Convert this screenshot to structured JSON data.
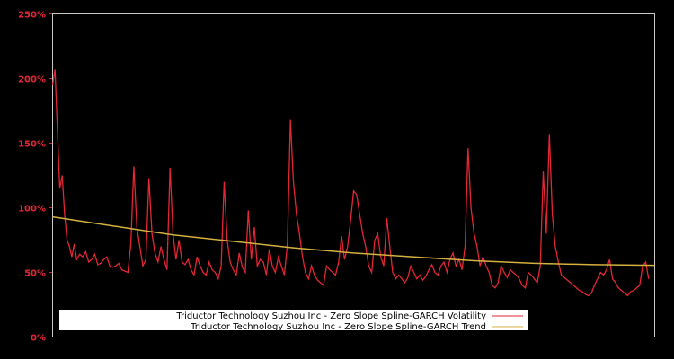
{
  "chart_data": {
    "type": "line",
    "title": "",
    "xlabel": "",
    "ylabel": "",
    "ylim": [
      0,
      250
    ],
    "y_ticks": [
      "0%",
      "50%",
      "100%",
      "150%",
      "200%",
      "250%"
    ],
    "grid": false,
    "legend_position": "bottom-left inside plot",
    "series": [
      {
        "name": "Triductor Technology Suzhou Inc - Zero Slope Spline-GARCH Volatility",
        "color": "#e32636",
        "x_frac": [
          0.0,
          0.004,
          0.008,
          0.012,
          0.016,
          0.02,
          0.024,
          0.028,
          0.032,
          0.036,
          0.04,
          0.045,
          0.05,
          0.055,
          0.06,
          0.065,
          0.07,
          0.075,
          0.08,
          0.085,
          0.09,
          0.095,
          0.1,
          0.105,
          0.11,
          0.115,
          0.12,
          0.125,
          0.13,
          0.135,
          0.14,
          0.145,
          0.15,
          0.155,
          0.16,
          0.165,
          0.17,
          0.175,
          0.18,
          0.185,
          0.19,
          0.195,
          0.2,
          0.205,
          0.21,
          0.215,
          0.22,
          0.225,
          0.23,
          0.235,
          0.24,
          0.245,
          0.25,
          0.255,
          0.26,
          0.265,
          0.27,
          0.275,
          0.28,
          0.285,
          0.29,
          0.295,
          0.3,
          0.305,
          0.31,
          0.315,
          0.32,
          0.325,
          0.33,
          0.335,
          0.34,
          0.345,
          0.35,
          0.355,
          0.36,
          0.365,
          0.37,
          0.375,
          0.38,
          0.385,
          0.39,
          0.395,
          0.4,
          0.405,
          0.41,
          0.415,
          0.42,
          0.425,
          0.43,
          0.435,
          0.44,
          0.445,
          0.45,
          0.455,
          0.46,
          0.465,
          0.47,
          0.475,
          0.48,
          0.485,
          0.49,
          0.495,
          0.5,
          0.505,
          0.51,
          0.515,
          0.52,
          0.525,
          0.53,
          0.535,
          0.54,
          0.545,
          0.55,
          0.555,
          0.56,
          0.565,
          0.57,
          0.575,
          0.58,
          0.585,
          0.59,
          0.595,
          0.6,
          0.605,
          0.61,
          0.615,
          0.62,
          0.625,
          0.63,
          0.635,
          0.64,
          0.645,
          0.65,
          0.655,
          0.66,
          0.665,
          0.67,
          0.675,
          0.68,
          0.685,
          0.69,
          0.695,
          0.7,
          0.705,
          0.71,
          0.715,
          0.72,
          0.725,
          0.73,
          0.735,
          0.74,
          0.745,
          0.75,
          0.755,
          0.76,
          0.765,
          0.77,
          0.775,
          0.78,
          0.785,
          0.79,
          0.795,
          0.8,
          0.805,
          0.81,
          0.815,
          0.82,
          0.825,
          0.83,
          0.835,
          0.84,
          0.845,
          0.85,
          0.855,
          0.86,
          0.865,
          0.87,
          0.875,
          0.88,
          0.885,
          0.89,
          0.895,
          0.9,
          0.905,
          0.91,
          0.915,
          0.92,
          0.925,
          0.93,
          0.935,
          0.94,
          0.945,
          0.95,
          0.955,
          0.96,
          0.965,
          0.97,
          0.975,
          0.98,
          0.985,
          0.99,
          0.995,
          1.0
        ],
        "values": [
          195,
          207,
          160,
          115,
          125,
          95,
          75,
          70,
          62,
          72,
          60,
          64,
          62,
          66,
          58,
          60,
          64,
          56,
          57,
          60,
          62,
          55,
          54,
          55,
          57,
          52,
          51,
          50,
          72,
          132,
          85,
          70,
          55,
          60,
          123,
          80,
          65,
          58,
          70,
          60,
          52,
          131,
          80,
          60,
          75,
          58,
          56,
          60,
          52,
          48,
          62,
          55,
          50,
          48,
          58,
          52,
          50,
          45,
          55,
          120,
          75,
          58,
          52,
          48,
          65,
          54,
          50,
          98,
          60,
          85,
          55,
          60,
          58,
          48,
          68,
          55,
          50,
          62,
          55,
          48,
          72,
          168,
          120,
          95,
          80,
          62,
          50,
          45,
          55,
          48,
          44,
          42,
          40,
          55,
          52,
          50,
          48,
          58,
          78,
          60,
          70,
          90,
          113,
          110,
          95,
          80,
          70,
          55,
          50,
          75,
          80,
          62,
          55,
          92,
          70,
          50,
          45,
          48,
          45,
          42,
          46,
          55,
          50,
          45,
          48,
          44,
          47,
          52,
          56,
          50,
          48,
          55,
          58,
          50,
          60,
          65,
          55,
          60,
          52,
          70,
          146,
          100,
          80,
          70,
          55,
          62,
          55,
          50,
          40,
          38,
          42,
          55,
          50,
          46,
          52,
          50,
          48,
          45,
          40,
          38,
          50,
          48,
          45,
          42,
          55,
          128,
          80,
          157,
          95,
          70,
          58,
          48,
          46,
          44,
          42,
          40,
          38,
          36,
          35,
          33,
          32,
          34,
          40,
          45,
          50,
          48,
          52,
          60,
          45,
          42,
          38,
          36,
          34,
          32,
          35,
          36,
          38,
          40,
          55,
          58,
          45
        ]
      },
      {
        "name": "Triductor Technology Suzhou Inc - Zero Slope Spline-GARCH Trend",
        "color": "#d4b040",
        "x_frac": [
          0.0,
          0.1,
          0.2,
          0.3,
          0.4,
          0.5,
          0.6,
          0.7,
          0.8,
          0.9,
          1.0
        ],
        "values": [
          93,
          86,
          79,
          74,
          69,
          65,
          62,
          59,
          57,
          56,
          55.5
        ]
      }
    ]
  },
  "legend": {
    "items": [
      {
        "label": "Triductor Technology Suzhou Inc - Zero Slope Spline-GARCH Volatility",
        "color": "#e32636"
      },
      {
        "label": "Triductor Technology Suzhou Inc - Zero Slope Spline-GARCH Trend",
        "color": "#d4b040"
      }
    ]
  }
}
